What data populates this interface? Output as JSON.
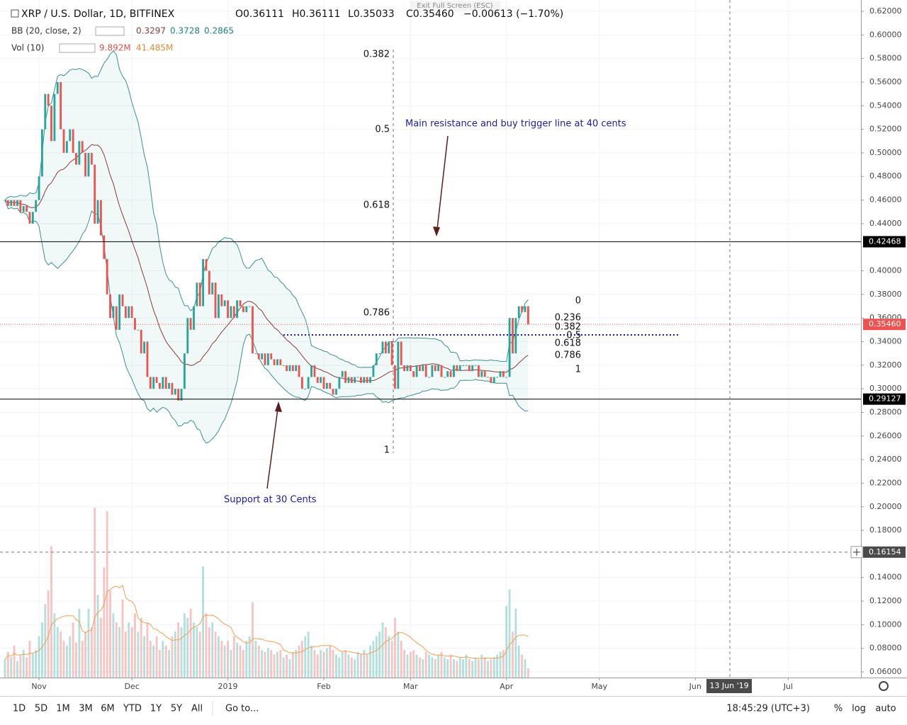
{
  "header": {
    "symbol": "XRP / U.S. Dollar, 1D, BITFINEX",
    "open": "O0.36111",
    "high": "H0.36111",
    "low": "L0.35033",
    "close": "C0.35460",
    "change": "−0.00613 (−1.70%)",
    "exit": "Exit Full Screen (ESC)"
  },
  "indicators": {
    "bb": {
      "label": "BB (20, close, 2)",
      "values": [
        "0.3297",
        "0.3728",
        "0.2865"
      ]
    },
    "vol": {
      "label": "Vol (10)",
      "values": [
        "9.892M",
        "41.485M"
      ]
    }
  },
  "chart_data": {
    "type": "candlestick",
    "close": [
      0.46,
      0.455,
      0.46,
      0.455,
      0.46,
      0.45,
      0.455,
      0.45,
      0.44,
      0.45,
      0.46,
      0.48,
      0.52,
      0.55,
      0.54,
      0.51,
      0.55,
      0.56,
      0.52,
      0.5,
      0.51,
      0.52,
      0.5,
      0.49,
      0.51,
      0.5,
      0.48,
      0.5,
      0.49,
      0.44,
      0.46,
      0.43,
      0.41,
      0.38,
      0.36,
      0.37,
      0.35,
      0.38,
      0.37,
      0.36,
      0.37,
      0.36,
      0.35,
      0.35,
      0.33,
      0.34,
      0.31,
      0.3,
      0.31,
      0.305,
      0.3,
      0.31,
      0.3,
      0.305,
      0.295,
      0.3,
      0.29,
      0.3,
      0.33,
      0.36,
      0.35,
      0.37,
      0.39,
      0.37,
      0.41,
      0.4,
      0.38,
      0.39,
      0.36,
      0.38,
      0.37,
      0.375,
      0.36,
      0.37,
      0.36,
      0.375,
      0.37,
      0.365,
      0.37,
      0.37,
      0.33,
      0.33,
      0.325,
      0.33,
      0.32,
      0.33,
      0.325,
      0.32,
      0.325,
      0.32,
      0.32,
      0.315,
      0.32,
      0.315,
      0.32,
      0.31,
      0.3,
      0.3,
      0.31,
      0.32,
      0.31,
      0.305,
      0.31,
      0.3,
      0.305,
      0.3,
      0.295,
      0.3,
      0.31,
      0.315,
      0.305,
      0.31,
      0.305,
      0.31,
      0.31,
      0.305,
      0.31,
      0.305,
      0.31,
      0.32,
      0.33,
      0.33,
      0.34,
      0.33,
      0.34,
      0.32,
      0.3,
      0.34,
      0.32,
      0.315,
      0.32,
      0.315,
      0.31,
      0.32,
      0.315,
      0.32,
      0.31,
      0.31,
      0.32,
      0.315,
      0.32,
      0.31,
      0.31,
      0.315,
      0.31,
      0.32,
      0.315,
      0.32,
      0.32,
      0.32,
      0.315,
      0.32,
      0.32,
      0.31,
      0.315,
      0.31,
      0.31,
      0.305,
      0.31,
      0.31,
      0.315,
      0.31,
      0.31,
      0.36,
      0.33,
      0.36,
      0.37,
      0.365,
      0.37,
      0.3546
    ],
    "volume": [
      20,
      28,
      22,
      35,
      18,
      25,
      30,
      22,
      40,
      26,
      30,
      45,
      60,
      80,
      95,
      143,
      70,
      55,
      50,
      40,
      35,
      45,
      60,
      38,
      75,
      40,
      50,
      75,
      55,
      185,
      90,
      65,
      120,
      181,
      95,
      70,
      60,
      55,
      85,
      50,
      60,
      55,
      70,
      50,
      65,
      45,
      60,
      40,
      35,
      45,
      30,
      40,
      35,
      30,
      45,
      50,
      60,
      55,
      70,
      65,
      75,
      60,
      55,
      50,
      121,
      70,
      55,
      60,
      50,
      45,
      40,
      35,
      40,
      30,
      45,
      38,
      35,
      30,
      40,
      45,
      82,
      40,
      35,
      30,
      28,
      32,
      30,
      25,
      28,
      30,
      22,
      25,
      20,
      28,
      30,
      35,
      40,
      45,
      50,
      35,
      30,
      25,
      30,
      28,
      32,
      35,
      30,
      25,
      22,
      28,
      30,
      25,
      22,
      20,
      28,
      25,
      30,
      25,
      35,
      40,
      45,
      50,
      60,
      55,
      45,
      40,
      65,
      50,
      40,
      30,
      25,
      28,
      30,
      25,
      22,
      20,
      28,
      25,
      22,
      20,
      25,
      28,
      22,
      20,
      25,
      20,
      18,
      22,
      20,
      25,
      20,
      18,
      22,
      20,
      25,
      22,
      18,
      20,
      22,
      25,
      28,
      30,
      78,
      96,
      50,
      75,
      35,
      25,
      20,
      10
    ],
    "up_color": "#26a69a",
    "down_color": "#ef5350",
    "xlim": [
      -1.6,
      276.5
    ],
    "ylim": [
      0.0552,
      0.626
    ],
    "vlim": [
      0,
      185
    ],
    "xticks": [
      {
        "value": 11,
        "label": "Nov"
      },
      {
        "value": 41,
        "label": "Dec"
      },
      {
        "value": 72,
        "label": "2019"
      },
      {
        "value": 103,
        "label": "Feb"
      },
      {
        "value": 131,
        "label": "Mar"
      },
      {
        "value": 162,
        "label": "Apr"
      },
      {
        "value": 192,
        "label": "May"
      },
      {
        "value": 223,
        "label": "Jun"
      },
      {
        "value": 253,
        "label": "Jul"
      }
    ],
    "yticks": [
      {
        "value": 0.62,
        "label": "0.62000"
      },
      {
        "value": 0.6,
        "label": "0.60000"
      },
      {
        "value": 0.58,
        "label": "0.58000"
      },
      {
        "value": 0.56,
        "label": "0.56000"
      },
      {
        "value": 0.54,
        "label": "0.54000"
      },
      {
        "value": 0.52,
        "label": "0.52000"
      },
      {
        "value": 0.5,
        "label": "0.50000"
      },
      {
        "value": 0.48,
        "label": "0.48000"
      },
      {
        "value": 0.46,
        "label": "0.46000"
      },
      {
        "value": 0.44,
        "label": "0.44000"
      },
      {
        "value": 0.4,
        "label": "0.40000"
      },
      {
        "value": 0.38,
        "label": "0.38000"
      },
      {
        "value": 0.36,
        "label": "0.36000"
      },
      {
        "value": 0.34,
        "label": "0.34000"
      },
      {
        "value": 0.32,
        "label": "0.32000"
      },
      {
        "value": 0.3,
        "label": "0.30000"
      },
      {
        "value": 0.28,
        "label": "0.28000"
      },
      {
        "value": 0.26,
        "label": "0.26000"
      },
      {
        "value": 0.24,
        "label": "0.24000"
      },
      {
        "value": 0.22,
        "label": "0.22000"
      },
      {
        "value": 0.2,
        "label": "0.20000"
      },
      {
        "value": 0.18,
        "label": "0.18000"
      },
      {
        "value": 0.14,
        "label": "0.14000"
      },
      {
        "value": 0.12,
        "label": "0.12000"
      },
      {
        "value": 0.1,
        "label": "0.10000"
      },
      {
        "value": 0.08,
        "label": "0.08000"
      },
      {
        "value": 0.06,
        "label": "0.06000"
      }
    ],
    "hlines": [
      {
        "value": 0.42468,
        "label": "0.42468",
        "color": "#000000"
      },
      {
        "value": 0.29127,
        "label": "0.29127",
        "color": "#000000"
      }
    ],
    "last_price": {
      "value": 0.3546,
      "label": "0.35460",
      "color": "#ef5350"
    },
    "crosshair": {
      "value": 0.16154,
      "label": "0.16154",
      "date": "13 Jun '19"
    },
    "fib_left": [
      0.382,
      0.5,
      0.618,
      0.786,
      1
    ],
    "fib_right": [
      0,
      0.236,
      0.382,
      0.5,
      0.618,
      0.786,
      1
    ],
    "annotations": [
      "Main resistance and buy trigger line at 40 cents",
      "Support at 30 Cents"
    ]
  },
  "toolbar": {
    "ranges": [
      "1D",
      "5D",
      "1M",
      "3M",
      "6M",
      "YTD",
      "1Y",
      "5Y",
      "All"
    ],
    "goto": "Go to...",
    "time": "18:45:29 (UTC+3)",
    "right": [
      "%",
      "log",
      "auto"
    ]
  }
}
